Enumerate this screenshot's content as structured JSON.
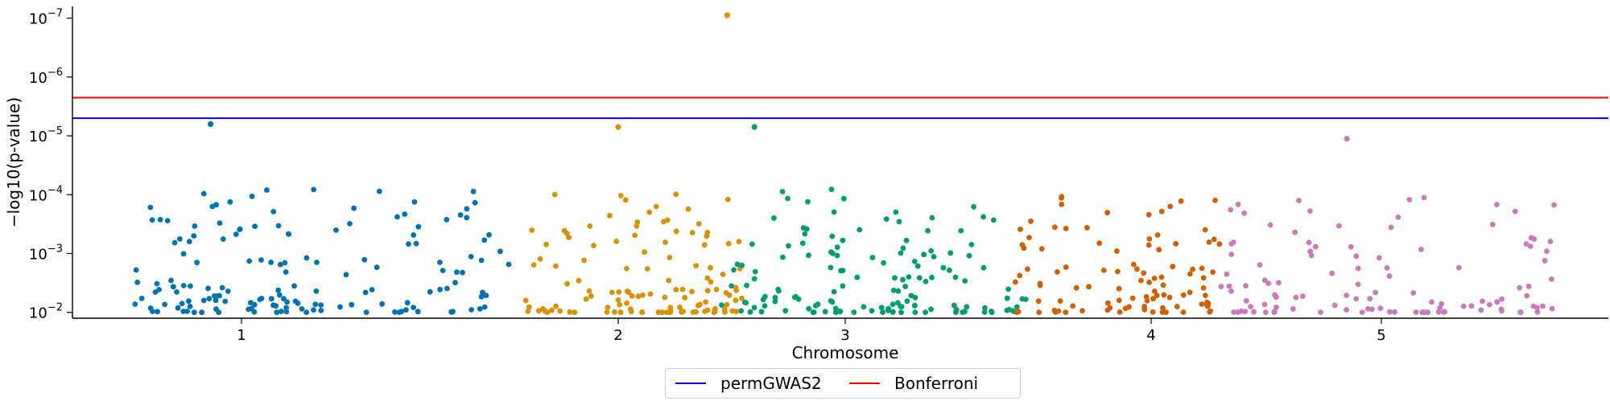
{
  "chart_data": {
    "type": "scatter",
    "title": "",
    "xlabel": "Chromosome",
    "ylabel": "−log10(p-value)",
    "y_scale": "log (-log10 transformed, decreasing downward)",
    "ylim_exponents": [
      -1.9,
      -7.2
    ],
    "x_ticks": [
      "1",
      "2",
      "3",
      "4",
      "5"
    ],
    "y_ticks": [
      {
        "base": "10",
        "exp": "−2"
      },
      {
        "base": "10",
        "exp": "−3"
      },
      {
        "base": "10",
        "exp": "−4"
      },
      {
        "base": "10",
        "exp": "−5"
      },
      {
        "base": "10",
        "exp": "−6"
      },
      {
        "base": "10",
        "exp": "−7"
      }
    ],
    "thresholds": [
      {
        "name": "permGWAS2",
        "p_exponent": -5.3,
        "color": "#0000ff"
      },
      {
        "name": "Bonferroni",
        "p_exponent": -5.65,
        "color": "#ff0000"
      }
    ],
    "series_colors": [
      "#0173b2",
      "#de8f05",
      "#029e73",
      "#d55e00",
      "#cc78bc"
    ],
    "grid": false,
    "legend_position": "bottom-center",
    "notable_points": [
      {
        "x": 0.88,
        "p_exponent": -5.2,
        "color_index": 0
      },
      {
        "x": 2.0,
        "p_exponent": -5.15,
        "color_index": 1
      },
      {
        "x": 2.48,
        "p_exponent": -7.05,
        "color_index": 1
      },
      {
        "x": 2.6,
        "p_exponent": -5.15,
        "color_index": 2
      },
      {
        "x": 4.85,
        "p_exponent": -4.95,
        "color_index": 4
      }
    ]
  },
  "legend": {
    "items": [
      {
        "label": "permGWAS2",
        "color": "#0000ff"
      },
      {
        "label": "Bonferroni",
        "color": "#ff0000"
      }
    ]
  }
}
